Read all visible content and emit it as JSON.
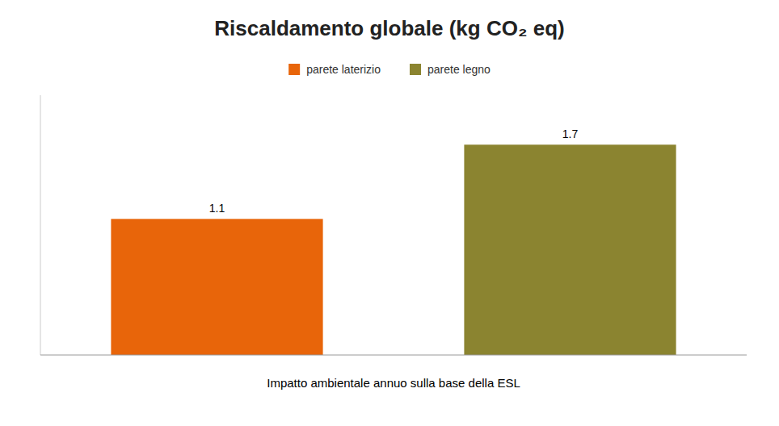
{
  "chart_data": {
    "type": "bar",
    "title": "Riscaldamento globale (kg CO₂ eq)",
    "xlabel": "Impatto ambientale annuo sulla base della ESL",
    "categories": [
      "parete laterizio",
      "parete legno"
    ],
    "values": [
      1.1,
      1.7
    ],
    "colors": [
      "#E8650A",
      "#8B8430"
    ],
    "ylim": [
      0,
      2.1
    ],
    "yticks": [],
    "tick_labels": false,
    "data_labels": true,
    "legend": "top",
    "grid": false
  }
}
